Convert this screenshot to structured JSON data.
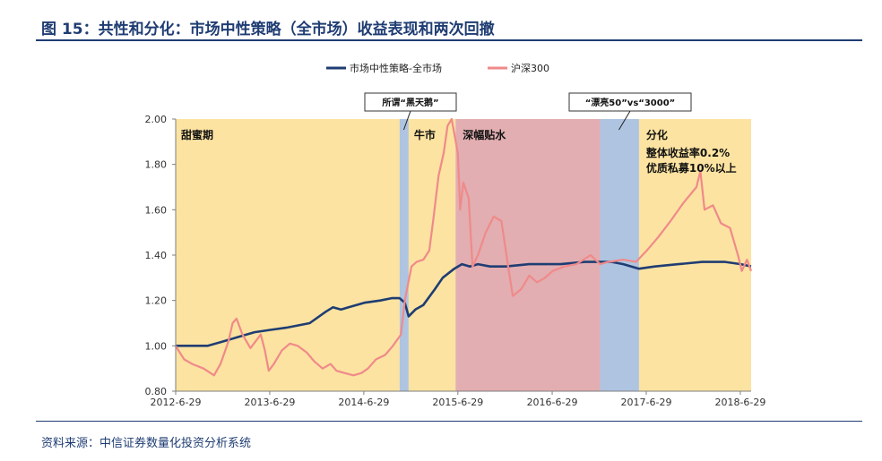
{
  "figure": {
    "title": "图 15：共性和分化：市场中性策略（全市场）收益表现和两次回撤",
    "source": "资料来源：中信证券数量化投资分析系统"
  },
  "colors": {
    "neutral_line": "#1f3d73",
    "csi300_line": "#f08a8a",
    "phase_yellow": "#fce3a1",
    "phase_blue": "#aec4e0",
    "phase_pink": "#e2aeb1",
    "frame": "#1f3d73"
  },
  "chart_data": {
    "type": "line",
    "title": "",
    "xlabel": "",
    "ylabel": "",
    "ylim": [
      0.8,
      2.0
    ],
    "yticks": [
      0.8,
      1.0,
      1.2,
      1.4,
      1.6,
      1.8,
      2.0
    ],
    "ytick_labels": [
      "0.80",
      "1.00",
      "1.20",
      "1.40",
      "1.60",
      "1.80",
      "2.00"
    ],
    "xlim": [
      "2012-06-29",
      "2018-08-10"
    ],
    "xticks": [
      "2012-06-29",
      "2013-06-29",
      "2014-06-29",
      "2015-06-29",
      "2016-06-29",
      "2017-06-29",
      "2018-06-29"
    ],
    "xtick_labels": [
      "2012-6-29",
      "2013-6-29",
      "2014-6-29",
      "2015-6-29",
      "2016-6-29",
      "2017-6-29",
      "2018-6-29"
    ],
    "legend": {
      "position": "top-center"
    },
    "grid": false,
    "series": [
      {
        "name": "市场中性策略-全市场",
        "color_key": "neutral_line",
        "points": [
          [
            "2012-06-29",
            1.0
          ],
          [
            "2012-09-01",
            1.0
          ],
          [
            "2012-11-01",
            1.0
          ],
          [
            "2013-01-01",
            1.02
          ],
          [
            "2013-03-01",
            1.04
          ],
          [
            "2013-05-01",
            1.06
          ],
          [
            "2013-06-29",
            1.07
          ],
          [
            "2013-09-01",
            1.08
          ],
          [
            "2013-12-01",
            1.1
          ],
          [
            "2014-02-01",
            1.15
          ],
          [
            "2014-03-01",
            1.17
          ],
          [
            "2014-04-01",
            1.16
          ],
          [
            "2014-05-01",
            1.17
          ],
          [
            "2014-07-01",
            1.19
          ],
          [
            "2014-09-01",
            1.2
          ],
          [
            "2014-10-15",
            1.21
          ],
          [
            "2014-11-15",
            1.21
          ],
          [
            "2014-12-05",
            1.19
          ],
          [
            "2014-12-20",
            1.13
          ],
          [
            "2015-01-15",
            1.16
          ],
          [
            "2015-02-15",
            1.18
          ],
          [
            "2015-04-01",
            1.25
          ],
          [
            "2015-05-01",
            1.3
          ],
          [
            "2015-06-15",
            1.34
          ],
          [
            "2015-07-15",
            1.36
          ],
          [
            "2015-08-15",
            1.35
          ],
          [
            "2015-09-15",
            1.36
          ],
          [
            "2015-11-01",
            1.35
          ],
          [
            "2016-01-01",
            1.35
          ],
          [
            "2016-04-01",
            1.36
          ],
          [
            "2016-08-01",
            1.36
          ],
          [
            "2016-11-01",
            1.37
          ],
          [
            "2017-01-01",
            1.37
          ],
          [
            "2017-02-15",
            1.37
          ],
          [
            "2017-04-01",
            1.36
          ],
          [
            "2017-06-01",
            1.34
          ],
          [
            "2017-08-01",
            1.35
          ],
          [
            "2017-11-01",
            1.36
          ],
          [
            "2018-02-01",
            1.37
          ],
          [
            "2018-05-01",
            1.37
          ],
          [
            "2018-07-01",
            1.36
          ],
          [
            "2018-08-10",
            1.35
          ]
        ]
      },
      {
        "name": "沪深300",
        "color_key": "csi300_line",
        "points": [
          [
            "2012-06-29",
            1.0
          ],
          [
            "2012-07-15",
            0.97
          ],
          [
            "2012-08-01",
            0.94
          ],
          [
            "2012-09-01",
            0.92
          ],
          [
            "2012-10-15",
            0.9
          ],
          [
            "2012-11-25",
            0.87
          ],
          [
            "2012-12-20",
            0.92
          ],
          [
            "2013-01-20",
            1.02
          ],
          [
            "2013-02-05",
            1.1
          ],
          [
            "2013-02-20",
            1.12
          ],
          [
            "2013-03-15",
            1.05
          ],
          [
            "2013-04-15",
            0.99
          ],
          [
            "2013-05-25",
            1.05
          ],
          [
            "2013-06-10",
            0.98
          ],
          [
            "2013-06-25",
            0.89
          ],
          [
            "2013-07-15",
            0.92
          ],
          [
            "2013-08-15",
            0.98
          ],
          [
            "2013-09-15",
            1.01
          ],
          [
            "2013-10-15",
            1.0
          ],
          [
            "2013-11-20",
            0.97
          ],
          [
            "2013-12-20",
            0.93
          ],
          [
            "2014-01-20",
            0.9
          ],
          [
            "2014-02-20",
            0.92
          ],
          [
            "2014-03-15",
            0.89
          ],
          [
            "2014-04-15",
            0.88
          ],
          [
            "2014-05-20",
            0.87
          ],
          [
            "2014-06-20",
            0.88
          ],
          [
            "2014-07-15",
            0.9
          ],
          [
            "2014-08-15",
            0.94
          ],
          [
            "2014-09-20",
            0.96
          ],
          [
            "2014-10-20",
            1.0
          ],
          [
            "2014-11-20",
            1.05
          ],
          [
            "2014-12-05",
            1.2
          ],
          [
            "2014-12-31",
            1.35
          ],
          [
            "2015-01-20",
            1.37
          ],
          [
            "2015-02-15",
            1.38
          ],
          [
            "2015-03-10",
            1.42
          ],
          [
            "2015-03-25",
            1.55
          ],
          [
            "2015-04-15",
            1.75
          ],
          [
            "2015-05-05",
            1.85
          ],
          [
            "2015-05-20",
            1.97
          ],
          [
            "2015-06-05",
            2.0
          ],
          [
            "2015-06-29",
            1.85
          ],
          [
            "2015-07-08",
            1.6
          ],
          [
            "2015-07-20",
            1.72
          ],
          [
            "2015-08-10",
            1.65
          ],
          [
            "2015-08-25",
            1.35
          ],
          [
            "2015-09-15",
            1.4
          ],
          [
            "2015-10-15",
            1.5
          ],
          [
            "2015-11-15",
            1.57
          ],
          [
            "2015-12-15",
            1.55
          ],
          [
            "2016-01-10",
            1.35
          ],
          [
            "2016-01-28",
            1.22
          ],
          [
            "2016-03-01",
            1.25
          ],
          [
            "2016-04-01",
            1.31
          ],
          [
            "2016-05-01",
            1.28
          ],
          [
            "2016-06-01",
            1.3
          ],
          [
            "2016-07-01",
            1.33
          ],
          [
            "2016-08-15",
            1.35
          ],
          [
            "2016-10-01",
            1.36
          ],
          [
            "2016-11-25",
            1.4
          ],
          [
            "2017-01-01",
            1.36
          ],
          [
            "2017-02-01",
            1.37
          ],
          [
            "2017-04-01",
            1.38
          ],
          [
            "2017-05-20",
            1.37
          ],
          [
            "2017-07-01",
            1.42
          ],
          [
            "2017-08-15",
            1.48
          ],
          [
            "2017-10-01",
            1.55
          ],
          [
            "2017-11-20",
            1.63
          ],
          [
            "2018-01-10",
            1.7
          ],
          [
            "2018-01-25",
            1.77
          ],
          [
            "2018-02-10",
            1.6
          ],
          [
            "2018-03-15",
            1.62
          ],
          [
            "2018-04-15",
            1.54
          ],
          [
            "2018-05-20",
            1.52
          ],
          [
            "2018-06-20",
            1.4
          ],
          [
            "2018-07-05",
            1.33
          ],
          [
            "2018-07-25",
            1.38
          ],
          [
            "2018-08-10",
            1.33
          ]
        ]
      }
    ],
    "phases": [
      {
        "start": "2012-06-29",
        "end": "2014-11-15",
        "color_key": "phase_yellow",
        "label": "甜蜜期"
      },
      {
        "start": "2014-11-15",
        "end": "2014-12-20",
        "color_key": "phase_blue",
        "label": ""
      },
      {
        "start": "2014-12-20",
        "end": "2015-06-20",
        "color_key": "phase_yellow",
        "label": "牛市"
      },
      {
        "start": "2015-06-20",
        "end": "2017-01-01",
        "color_key": "phase_pink",
        "label": "深幅贴水"
      },
      {
        "start": "2017-01-01",
        "end": "2017-06-01",
        "color_key": "phase_blue",
        "label": ""
      },
      {
        "start": "2017-06-01",
        "end": "2018-08-10",
        "color_key": "phase_yellow",
        "label": "分化"
      }
    ],
    "annotations": {
      "divergence_lines": [
        "整体收益率0.2%",
        "优质私募10%以上"
      ],
      "callouts": [
        {
          "text": "所谓“黑天鹅”",
          "target": "2014-12-01"
        },
        {
          "text": "“漂亮50”vs“3000”",
          "target": "2017-03-15"
        }
      ]
    }
  }
}
